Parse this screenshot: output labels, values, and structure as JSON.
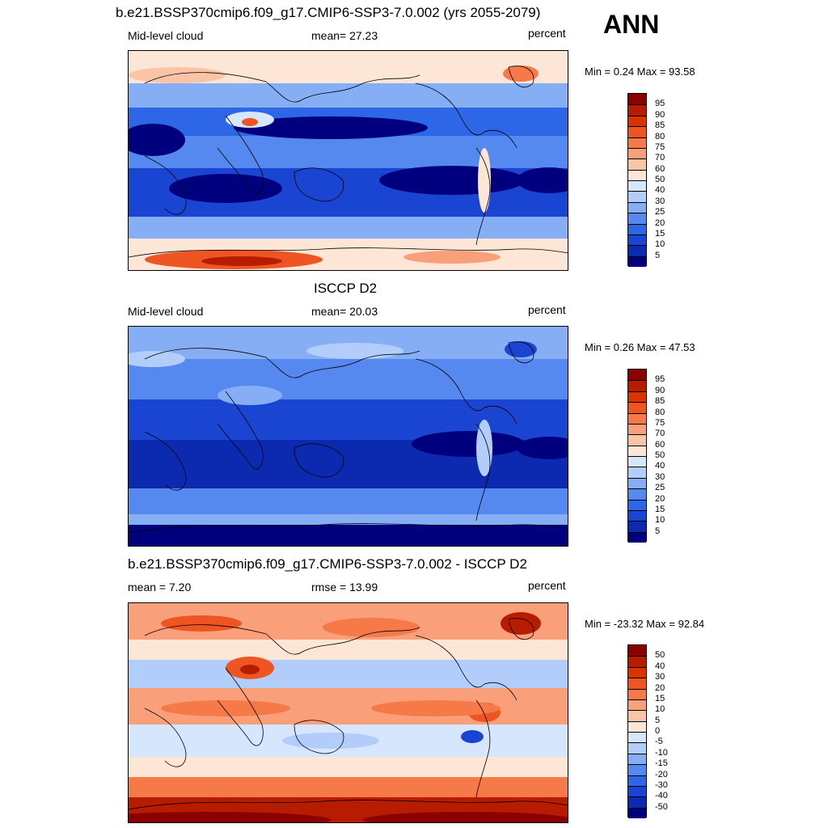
{
  "season": "ANN",
  "panels": [
    {
      "title": "b.e21.BSSP370cmip6.f09_g17.CMIP6-SSP3-7.0.002 (yrs 2055-2079)",
      "left_label": "Mid-level cloud",
      "center_label": "mean=  27.23",
      "right_label": "percent",
      "minmax": "Min =   0.24 Max =  93.58",
      "colorbar": {
        "labels": [
          "95",
          "90",
          "85",
          "80",
          "75",
          "70",
          "60",
          "50",
          "40",
          "30",
          "25",
          "20",
          "15",
          "10",
          "5"
        ],
        "colors": [
          "#8b0000",
          "#b81c00",
          "#d93300",
          "#ee5522",
          "#f57a48",
          "#f9a07a",
          "#fcc4a6",
          "#fde6d6",
          "#d6e6fc",
          "#b2cdfa",
          "#86aef5",
          "#5589ef",
          "#2d66e6",
          "#1a44d2",
          "#0c2ab0",
          "#00007f"
        ]
      }
    },
    {
      "title": "ISCCP D2",
      "left_label": "Mid-level cloud",
      "center_label": "mean=  20.03",
      "right_label": "percent",
      "minmax": "Min =   0.26 Max =  47.53",
      "colorbar": {
        "labels": [
          "95",
          "90",
          "85",
          "80",
          "75",
          "70",
          "60",
          "50",
          "40",
          "30",
          "25",
          "20",
          "15",
          "10",
          "5"
        ],
        "colors": [
          "#8b0000",
          "#b81c00",
          "#d93300",
          "#ee5522",
          "#f57a48",
          "#f9a07a",
          "#fcc4a6",
          "#fde6d6",
          "#d6e6fc",
          "#b2cdfa",
          "#86aef5",
          "#5589ef",
          "#2d66e6",
          "#1a44d2",
          "#0c2ab0",
          "#00007f"
        ]
      }
    },
    {
      "title": "b.e21.BSSP370cmip6.f09_g17.CMIP6-SSP3-7.0.002 - ISCCP D2",
      "left_label": "mean =   7.20",
      "center_label": "rmse =  13.99",
      "right_label": "percent",
      "minmax": "Min = -23.32 Max =  92.84",
      "colorbar": {
        "labels": [
          "50",
          "40",
          "30",
          "20",
          "15",
          "10",
          "5",
          "0",
          "-5",
          "-10",
          "-15",
          "-20",
          "-30",
          "-40",
          "-50"
        ],
        "colors": [
          "#8b0000",
          "#b81c00",
          "#d93300",
          "#ee5522",
          "#f57a48",
          "#f9a07a",
          "#fcc4a6",
          "#fde6d6",
          "#d6e6fc",
          "#b2cdfa",
          "#86aef5",
          "#5589ef",
          "#2d66e6",
          "#1a44d2",
          "#0c2ab0",
          "#00007f"
        ]
      }
    }
  ],
  "chart_data": [
    {
      "type": "heatmap",
      "title": "b.e21.BSSP370cmip6.f09_g17.CMIP6-SSP3-7.0.002 (yrs 2055-2079)",
      "variable": "Mid-level cloud",
      "units": "percent",
      "mean": 27.23,
      "min": 0.24,
      "max": 93.58,
      "contour_levels": [
        5,
        10,
        15,
        20,
        25,
        30,
        40,
        50,
        60,
        70,
        75,
        80,
        85,
        90,
        95
      ]
    },
    {
      "type": "heatmap",
      "title": "ISCCP D2",
      "variable": "Mid-level cloud",
      "units": "percent",
      "mean": 20.03,
      "min": 0.26,
      "max": 47.53,
      "contour_levels": [
        5,
        10,
        15,
        20,
        25,
        30,
        40,
        50,
        60,
        70,
        75,
        80,
        85,
        90,
        95
      ]
    },
    {
      "type": "heatmap",
      "title": "b.e21.BSSP370cmip6.f09_g17.CMIP6-SSP3-7.0.002 - ISCCP D2",
      "units": "percent",
      "mean": 7.2,
      "rmse": 13.99,
      "min": -23.32,
      "max": 92.84,
      "contour_levels": [
        -50,
        -40,
        -30,
        -20,
        -15,
        -10,
        -5,
        0,
        5,
        10,
        15,
        20,
        30,
        40,
        50
      ]
    }
  ]
}
